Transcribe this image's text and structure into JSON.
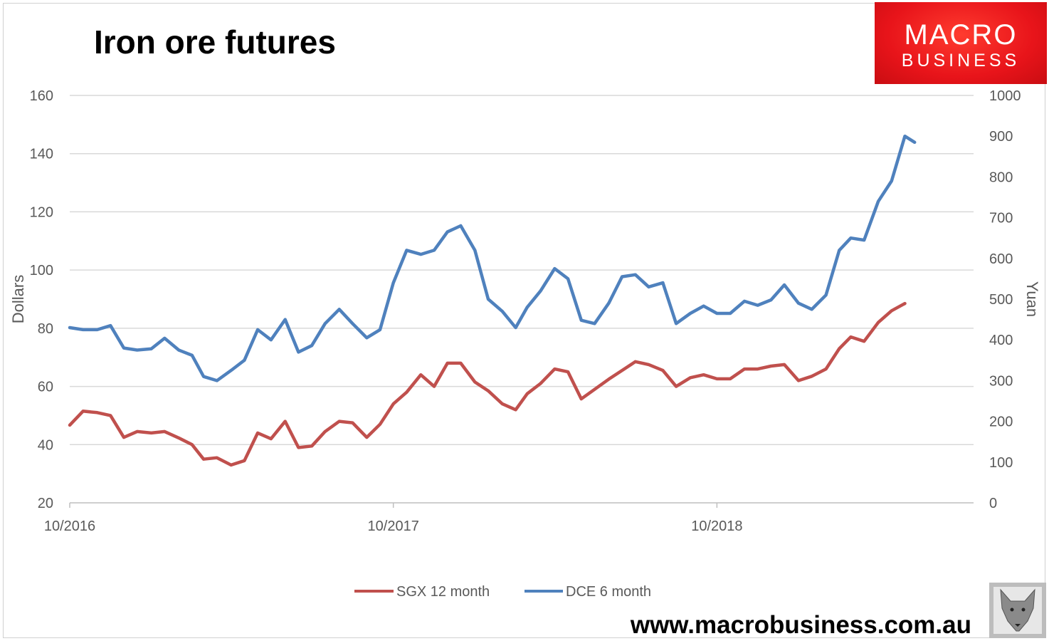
{
  "title": "Iron ore futures",
  "logo": {
    "line1": "MACRO",
    "line2": "BUSINESS"
  },
  "website": "www.macrobusiness.com.au",
  "chart_data": {
    "type": "line",
    "title": "Iron ore futures",
    "y_left": {
      "label": "Dollars",
      "range": [
        20,
        160
      ],
      "ticks": [
        "20",
        "40",
        "60",
        "80",
        "100",
        "120",
        "140",
        "160"
      ]
    },
    "y_right": {
      "label": "Yuan",
      "range": [
        0,
        1000
      ],
      "ticks": [
        "0",
        "100",
        "200",
        "300",
        "400",
        "500",
        "600",
        "700",
        "800",
        "900",
        "1000"
      ]
    },
    "x_axis": {
      "ticks": [
        {
          "label": "10/2016",
          "date": "2016-10-01"
        },
        {
          "label": "10/2017",
          "date": "2017-10-01"
        },
        {
          "label": "10/2018",
          "date": "2018-10-01"
        }
      ],
      "range": [
        "2016-10-01",
        "2019-07-15"
      ]
    },
    "grid": true,
    "legend": "bottom",
    "x": [
      "2016-10-01",
      "2016-10-16",
      "2016-11-01",
      "2016-11-16",
      "2016-12-01",
      "2016-12-16",
      "2017-01-01",
      "2017-01-16",
      "2017-02-01",
      "2017-02-16",
      "2017-03-01",
      "2017-03-16",
      "2017-04-01",
      "2017-04-16",
      "2017-05-01",
      "2017-05-16",
      "2017-06-01",
      "2017-06-16",
      "2017-07-01",
      "2017-07-16",
      "2017-08-01",
      "2017-08-16",
      "2017-09-01",
      "2017-09-16",
      "2017-10-01",
      "2017-10-16",
      "2017-11-01",
      "2017-11-16",
      "2017-12-01",
      "2017-12-16",
      "2018-01-01",
      "2018-01-16",
      "2018-02-01",
      "2018-02-16",
      "2018-03-01",
      "2018-03-16",
      "2018-04-01",
      "2018-04-16",
      "2018-05-01",
      "2018-05-16",
      "2018-06-01",
      "2018-06-16",
      "2018-07-01",
      "2018-07-16",
      "2018-08-01",
      "2018-08-16",
      "2018-09-01",
      "2018-09-16",
      "2018-10-01",
      "2018-10-16",
      "2018-11-01",
      "2018-11-16",
      "2018-12-01",
      "2018-12-16",
      "2019-01-01",
      "2019-01-16",
      "2019-02-01",
      "2019-02-16",
      "2019-03-01",
      "2019-03-16",
      "2019-04-01",
      "2019-04-16",
      "2019-05-01",
      "2019-05-12"
    ],
    "series": [
      {
        "name": "SGX 12 month",
        "axis": "left",
        "color": "#C0504D",
        "values": [
          46.7,
          51.5,
          51,
          50,
          42.5,
          44.5,
          44,
          44.5,
          42.3,
          40,
          35,
          35.5,
          33,
          34.5,
          44,
          42,
          48,
          39,
          39.5,
          44.5,
          48,
          47.5,
          42.5,
          47,
          54,
          58,
          64,
          60,
          68,
          68,
          61.5,
          58.5,
          54,
          52,
          57.5,
          61,
          66,
          65,
          55.7,
          59,
          62.5,
          65.5,
          68.5,
          67.5,
          65.5,
          60,
          63,
          64,
          62.6,
          62.6,
          66,
          66,
          67,
          67.5,
          62,
          63.5,
          66,
          73,
          77,
          75.5,
          82,
          86,
          88.5,
          null
        ]
      },
      {
        "name": "DCE 6 month",
        "axis": "right",
        "color": "#4F81BD",
        "values": [
          430,
          425,
          425,
          435,
          380,
          375,
          378,
          404,
          375,
          362,
          310,
          300,
          325,
          350,
          425,
          400,
          450,
          370,
          386,
          440,
          475,
          440,
          405,
          425,
          540,
          620,
          610,
          620,
          665,
          680,
          620,
          500,
          470,
          430,
          480,
          520,
          575,
          550,
          448,
          440,
          490,
          555,
          560,
          530,
          540,
          440,
          465,
          483,
          465,
          465,
          495,
          485,
          498,
          535,
          490,
          475,
          510,
          620,
          650,
          645,
          740,
          790,
          900,
          885
        ]
      }
    ]
  }
}
